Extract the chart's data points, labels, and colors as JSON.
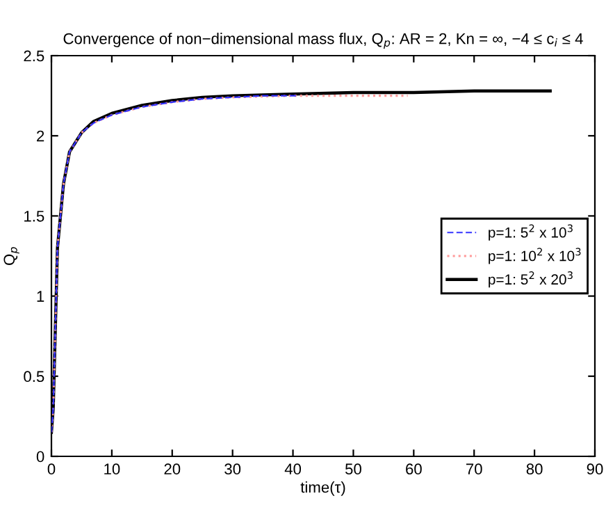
{
  "chart_data": {
    "type": "line",
    "title": "Convergence of non−dimensional mass flux, Q$_{p}$: AR = 2, Kn = ∞, −4 ≤ c$_{i}$ ≤ 4",
    "xlabel": "time(τ)",
    "ylabel": "Q$_{p}$",
    "xlim": [
      0,
      90
    ],
    "ylim": [
      0,
      2.5
    ],
    "xticks": [
      0,
      10,
      20,
      30,
      40,
      50,
      60,
      70,
      80,
      90
    ],
    "yticks": [
      0,
      0.5,
      1,
      1.5,
      2,
      2.5
    ],
    "grid": false,
    "legend": "right",
    "marker": "none",
    "series": [
      {
        "name": "p=1: 5$^{2}$ x 10$^{3}$",
        "color": "#3333ff",
        "line_style": "dashed",
        "x": [
          0,
          0.3,
          1,
          2,
          3,
          5,
          7,
          10,
          15,
          20,
          25,
          30,
          35,
          40.5
        ],
        "values": [
          0.15,
          0.3,
          1.3,
          1.7,
          1.9,
          2.02,
          2.08,
          2.13,
          2.18,
          2.21,
          2.23,
          2.24,
          2.25,
          2.25
        ]
      },
      {
        "name": "p=1: 10$^{2}$ x 10$^{3}$",
        "color": "#ff9999",
        "line_style": "dotted",
        "x": [
          0,
          0.3,
          1,
          2,
          3,
          5,
          7,
          10,
          15,
          20,
          25,
          30,
          40,
          50,
          59
        ],
        "values": [
          0.15,
          0.3,
          1.3,
          1.7,
          1.9,
          2.02,
          2.08,
          2.13,
          2.18,
          2.21,
          2.23,
          2.24,
          2.25,
          2.25,
          2.25
        ]
      },
      {
        "name": "p=1: 5$^{2}$ x 20$^{3}$",
        "color": "#000000",
        "line_style": "solid",
        "x": [
          0,
          0.3,
          1,
          2,
          3,
          5,
          7,
          10,
          15,
          20,
          25,
          30,
          40,
          50,
          60,
          70,
          82.6
        ],
        "values": [
          0.15,
          0.3,
          1.3,
          1.7,
          1.9,
          2.02,
          2.09,
          2.14,
          2.19,
          2.22,
          2.24,
          2.25,
          2.26,
          2.27,
          2.27,
          2.28,
          2.28
        ]
      }
    ]
  }
}
